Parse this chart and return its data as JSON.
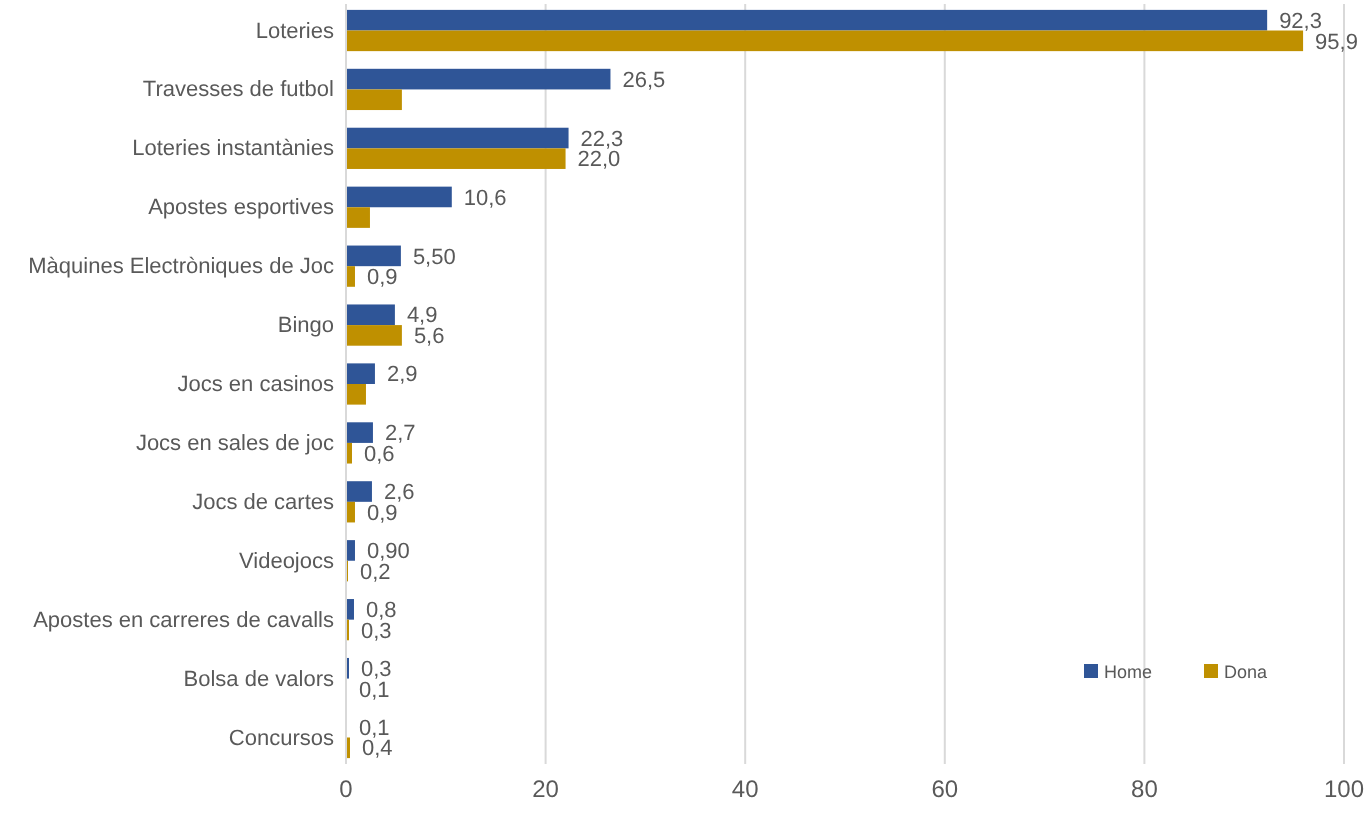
{
  "chart_data": {
    "type": "bar",
    "orientation": "horizontal",
    "categories": [
      "Loteries",
      "Travesses de futbol",
      "Loteries instantànies",
      "Apostes esportives",
      "Màquines Electròniques de Joc",
      "Bingo",
      "Jocs en casinos",
      "Jocs en sales de joc",
      "Jocs de cartes",
      "Videojocs",
      "Apostes en carreres de cavalls",
      "Bolsa de valors",
      "Concursos"
    ],
    "series": [
      {
        "name": "Home",
        "color": "#2f5597",
        "values": [
          92.3,
          26.5,
          22.3,
          10.6,
          5.5,
          4.9,
          2.9,
          2.7,
          2.6,
          0.9,
          0.8,
          0.3,
          0.1
        ],
        "value_labels": [
          "92,3",
          "26,5",
          "22,3",
          "10,6",
          "5,50",
          "4,9",
          "2,9",
          "2,7",
          "2,6",
          "0,90",
          "0,8",
          "0,3",
          "0,1"
        ]
      },
      {
        "name": "Dona",
        "color": "#bf9000",
        "values": [
          95.9,
          5.6,
          22.0,
          2.4,
          0.9,
          5.6,
          2.0,
          0.6,
          0.9,
          0.2,
          0.3,
          0.1,
          0.4
        ],
        "value_labels": [
          "95,9",
          null,
          "22,0",
          null,
          "0,9",
          "5,6",
          null,
          "0,6",
          "0,9",
          "0,2",
          "0,3",
          "0,1",
          "0,4"
        ]
      }
    ],
    "xlim": [
      0,
      100
    ],
    "xticks": [
      0,
      20,
      40,
      60,
      80,
      100
    ],
    "grid": "x",
    "legend": "bottom right"
  }
}
